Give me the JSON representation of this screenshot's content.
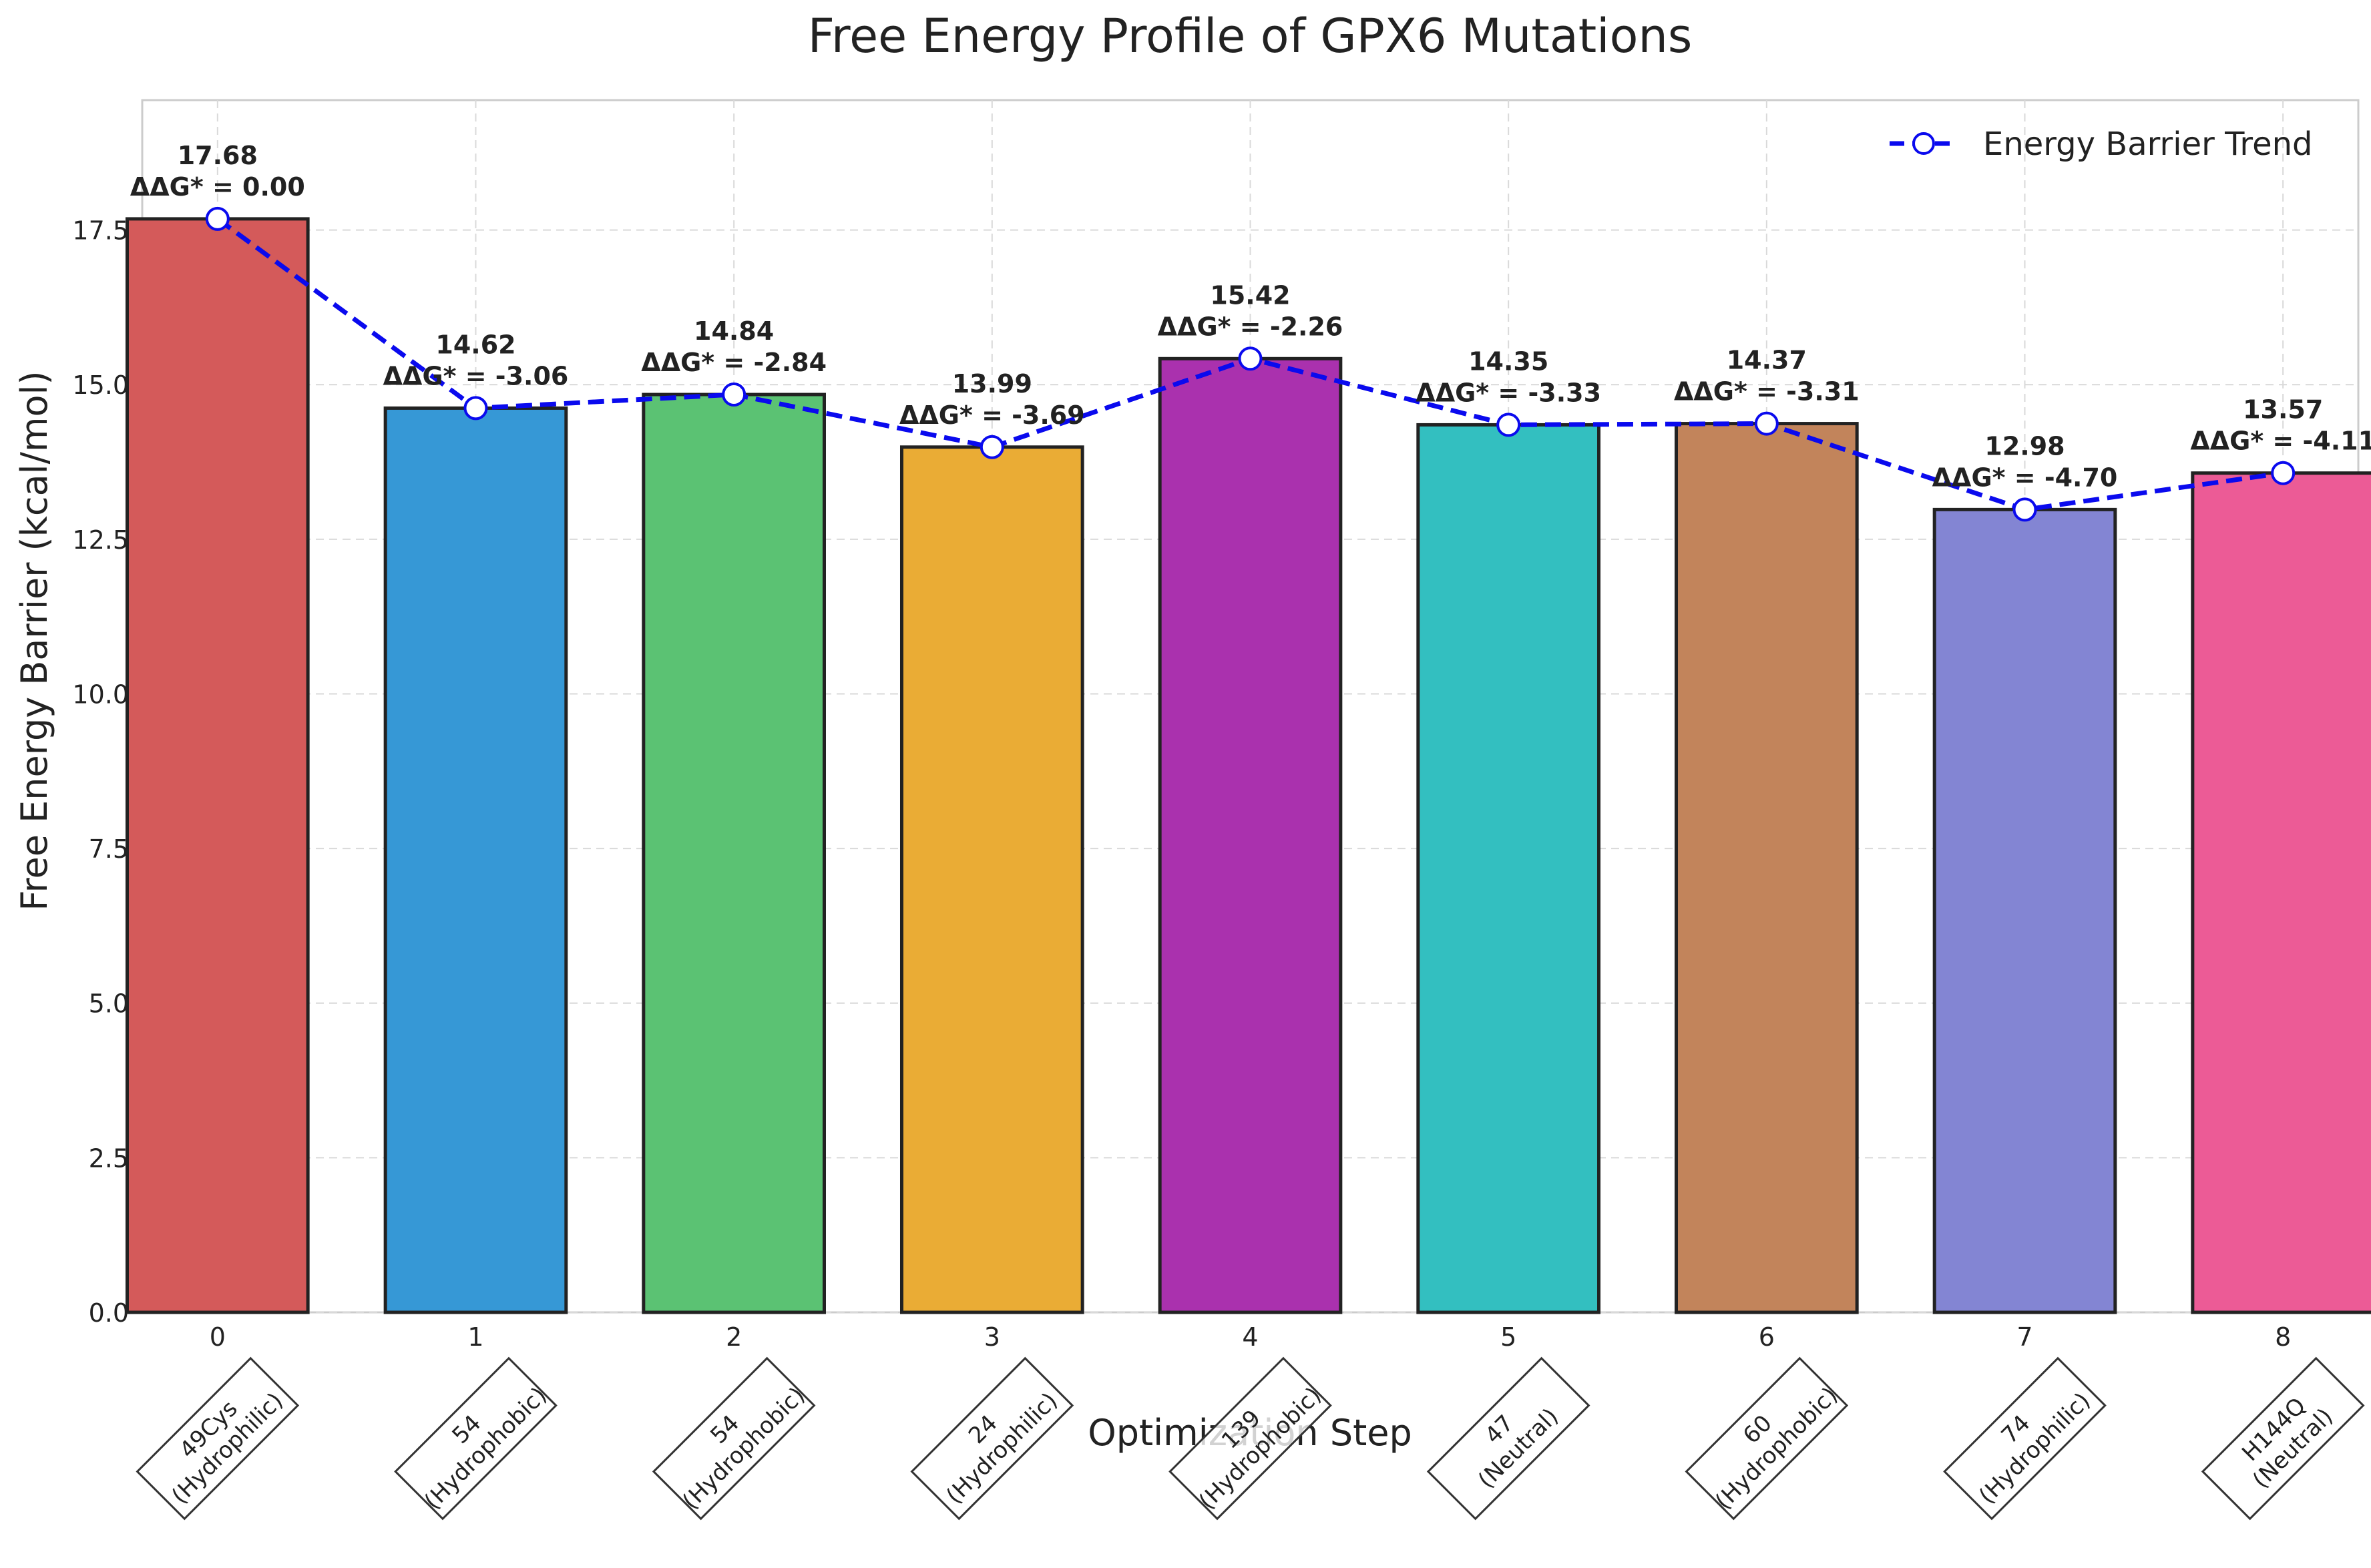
{
  "chart_data": {
    "type": "bar",
    "title": "Free Energy Profile of GPX6 Mutations",
    "xlabel": "Optimization Step",
    "ylabel": "Free Energy Barrier (kcal/mol)",
    "ylim": [
      0,
      19.6
    ],
    "yticks": [
      "0.0",
      "2.5",
      "5.0",
      "7.5",
      "10.0",
      "12.5",
      "15.0",
      "17.5"
    ],
    "grid": true,
    "legend_position": "top-right",
    "categories": [
      "0",
      "1",
      "2",
      "3",
      "4",
      "5",
      "6",
      "7",
      "8"
    ],
    "mutations": [
      {
        "site": "49Cys",
        "type": "(Hydrophilic)"
      },
      {
        "site": "54",
        "type": "(Hydrophobic)"
      },
      {
        "site": "54",
        "type": "(Hydrophobic)"
      },
      {
        "site": "24",
        "type": "(Hydrophilic)"
      },
      {
        "site": "139",
        "type": "(Hydrophobic)"
      },
      {
        "site": "47",
        "type": "(Neutral)"
      },
      {
        "site": "60",
        "type": "(Hydrophobic)"
      },
      {
        "site": "74",
        "type": "(Hydrophilic)"
      },
      {
        "site": "H144Q",
        "type": "(Neutral)"
      }
    ],
    "values": [
      17.68,
      14.62,
      14.84,
      13.99,
      15.42,
      14.35,
      14.37,
      12.98,
      13.57
    ],
    "value_labels": [
      "17.68",
      "14.62",
      "14.84",
      "13.99",
      "15.42",
      "14.35",
      "14.37",
      "12.98",
      "13.57"
    ],
    "ddg_labels": [
      "ΔΔG* = 0.00",
      "ΔΔG* = -3.06",
      "ΔΔG* = -2.84",
      "ΔΔG* = -3.69",
      "ΔΔG* = -2.26",
      "ΔΔG* = -3.33",
      "ΔΔG* = -3.31",
      "ΔΔG* = -4.70",
      "ΔΔG* = -4.11"
    ],
    "bar_colors": [
      "#d45a5a",
      "#3698d6",
      "#5bc273",
      "#eaac35",
      "#aa31ae",
      "#33bfc0",
      "#c2845b",
      "#8385d3",
      "#ec5b96"
    ],
    "trend_series": {
      "name": "Energy Barrier Trend",
      "color": "#0a0aee"
    }
  }
}
